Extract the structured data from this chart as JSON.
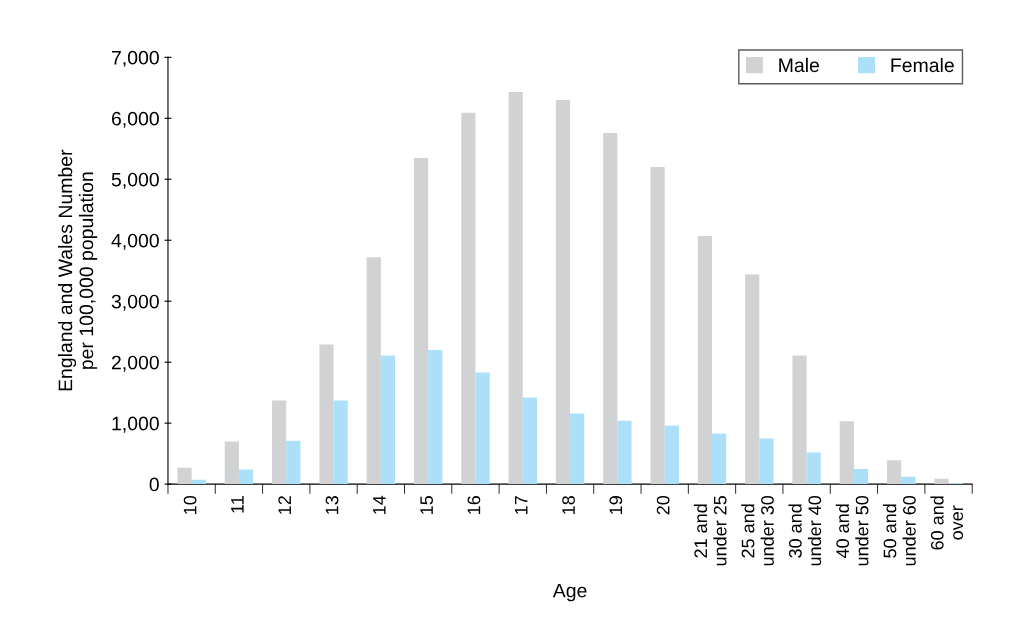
{
  "chart_data": {
    "type": "bar",
    "xlabel": "Age",
    "ylabel": "England and Wales Number\nper 100,000 population",
    "categories": [
      "10",
      "11",
      "12",
      "13",
      "14",
      "15",
      "16",
      "17",
      "18",
      "19",
      "20",
      "21 and\nunder 25",
      "25 and\nunder 30",
      "30 and\nunder 40",
      "40 and\nunder 50",
      "50 and\nunder 60",
      "60 and\nover"
    ],
    "series": [
      {
        "name": "Male",
        "color": "#d1d2d4",
        "values": [
          270,
          700,
          1370,
          2290,
          3720,
          5350,
          6090,
          6430,
          6300,
          5760,
          5200,
          4070,
          3440,
          2110,
          1030,
          390,
          90
        ]
      },
      {
        "name": "Female",
        "color": "#abe0f8",
        "values": [
          70,
          240,
          710,
          1370,
          2110,
          2200,
          1830,
          1420,
          1160,
          1040,
          960,
          830,
          750,
          520,
          250,
          120,
          20
        ]
      }
    ],
    "ylim": [
      0,
      7000
    ],
    "yticks": [
      {
        "value": 0,
        "label": "0"
      },
      {
        "value": 1000,
        "label": "1,000"
      },
      {
        "value": 2000,
        "label": "2,000"
      },
      {
        "value": 3000,
        "label": "3,000"
      },
      {
        "value": 4000,
        "label": "4,000"
      },
      {
        "value": 5000,
        "label": "5,000"
      },
      {
        "value": 6000,
        "label": "6,000"
      },
      {
        "value": 7000,
        "label": "7,000"
      }
    ],
    "grid": false,
    "legend": "top right"
  }
}
